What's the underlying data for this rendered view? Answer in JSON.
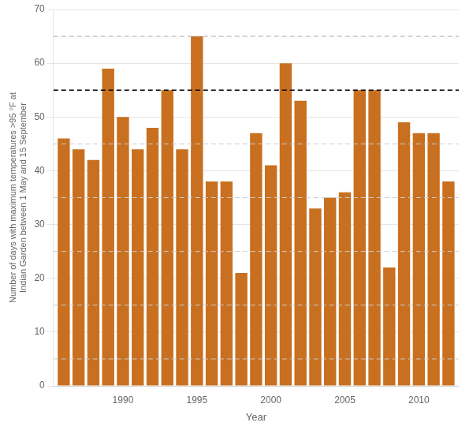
{
  "chart_data": {
    "type": "bar",
    "x": [
      1986,
      1987,
      1988,
      1989,
      1990,
      1991,
      1992,
      1993,
      1994,
      1995,
      1996,
      1997,
      1998,
      1999,
      2000,
      2001,
      2002,
      2003,
      2004,
      2005,
      2006,
      2007,
      2008,
      2009,
      2010,
      2011,
      2012
    ],
    "values": [
      46,
      44,
      42,
      59,
      50,
      44,
      48,
      55,
      44,
      65,
      38,
      38,
      21,
      47,
      41,
      60,
      53,
      33,
      35,
      36,
      55,
      55,
      22,
      49,
      47,
      47,
      38
    ],
    "color": "#C87020",
    "x_label": "Year",
    "y_label": "Number of days with maximum temperatures >95 °F at\nIndian Garden between 1 May and 15 September",
    "xlim": [
      1985.3,
      2012.7
    ],
    "xticks": [
      1990,
      1995,
      2000,
      2005,
      2010
    ],
    "ylim": [
      0,
      70
    ],
    "yticks": [
      0,
      10,
      20,
      30,
      40,
      50,
      60,
      70
    ],
    "grid": true,
    "hlines": [
      {
        "y": 5,
        "color": "#cccccc",
        "line_style": "dashed"
      },
      {
        "y": 15,
        "color": "#cccccc",
        "line_style": "dashed"
      },
      {
        "y": 25,
        "color": "#cccccc",
        "line_style": "dashed"
      },
      {
        "y": 35,
        "color": "#cccccc",
        "line_style": "dashed"
      },
      {
        "y": 45,
        "color": "#cccccc",
        "line_style": "dashed"
      },
      {
        "y": 65,
        "color": "#aaaaaa",
        "line_style": "dashed"
      },
      {
        "y": 55,
        "color": "black",
        "line_style": "dashed"
      }
    ]
  }
}
